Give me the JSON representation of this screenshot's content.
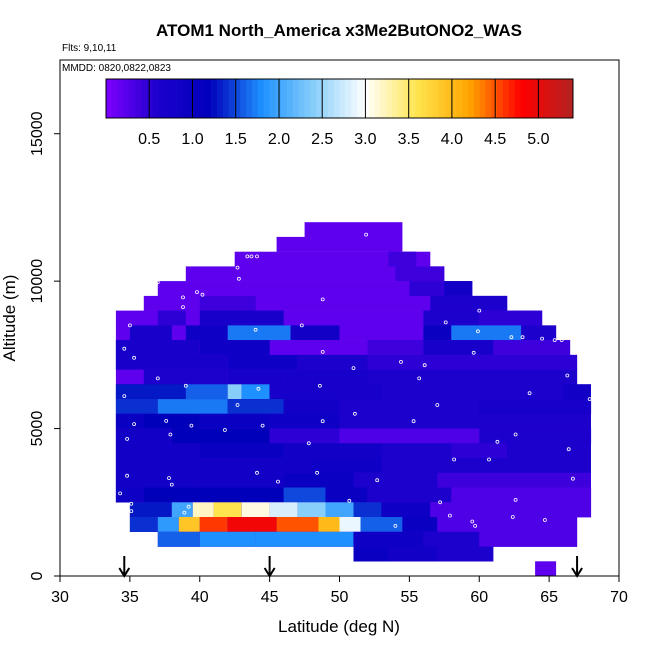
{
  "chart_data": {
    "type": "heatmap",
    "title": "ATOM1 North_America x3Me2ButONO2_WAS",
    "flights_label": "Flts: 9,10,11",
    "dates_label": "MMDD: 0820,0822,0823",
    "xlabel": "Latitude (deg N)",
    "ylabel": "Altitude (m)",
    "xlim": [
      30,
      70
    ],
    "ylim": [
      0,
      17500
    ],
    "x_ticks": [
      "30",
      "35",
      "40",
      "45",
      "50",
      "55",
      "60",
      "65",
      "70"
    ],
    "y_ticks": [
      "0",
      "5000",
      "10000",
      "15000"
    ],
    "colorbar": {
      "range": [
        0,
        5.4
      ],
      "ticks": [
        "0.5",
        "1.0",
        "1.5",
        "2.0",
        "2.5",
        "3.0",
        "3.5",
        "4.0",
        "4.5",
        "5.0"
      ],
      "colors": [
        "#7f00ff",
        "#1c00cc",
        "#0000bb",
        "#1e90ff",
        "#87cefa",
        "#ffffff",
        "#ffe44d",
        "#ffa500",
        "#ff0000",
        "#b22222"
      ]
    },
    "arrows_lat": [
      34.6,
      45.0,
      67.0
    ],
    "row_height_m": 500,
    "rows": [
      {
        "alt": 11750,
        "cells": [
          [
            47.5,
            54.5,
            0.2
          ]
        ]
      },
      {
        "alt": 11250,
        "cells": [
          [
            45.5,
            54.5,
            0.2
          ]
        ]
      },
      {
        "alt": 10750,
        "cells": [
          [
            42.5,
            56.5,
            0.2
          ],
          [
            53.5,
            55.5,
            0.4
          ]
        ]
      },
      {
        "alt": 10250,
        "cells": [
          [
            39.0,
            57.5,
            0.2
          ],
          [
            54.0,
            57.5,
            0.4
          ]
        ]
      },
      {
        "alt": 9750,
        "cells": [
          [
            37.0,
            57.5,
            0.2
          ],
          [
            55.0,
            59.5,
            0.5
          ],
          [
            57.5,
            59.5,
            0.8
          ]
        ]
      },
      {
        "alt": 9250,
        "cells": [
          [
            36.0,
            62.0,
            0.2
          ],
          [
            40.0,
            44.0,
            0.4
          ],
          [
            56.5,
            62.0,
            0.6
          ]
        ]
      },
      {
        "alt": 8750,
        "cells": [
          [
            34.0,
            64.5,
            0.2
          ],
          [
            37.0,
            39.0,
            0.5
          ],
          [
            40.0,
            46.0,
            0.7
          ],
          [
            56.0,
            60.0,
            0.6
          ],
          [
            60.0,
            64.5,
            0.5
          ]
        ]
      },
      {
        "alt": 8250,
        "cells": [
          [
            34.0,
            65.5,
            0.2
          ],
          [
            35.0,
            38.0,
            0.7
          ],
          [
            39.0,
            42.0,
            0.9
          ],
          [
            42.0,
            46.5,
            1.7
          ],
          [
            46.5,
            50.0,
            0.8
          ],
          [
            56.0,
            58.0,
            1.0
          ],
          [
            58.0,
            63.0,
            1.7
          ],
          [
            63.0,
            65.5,
            0.6
          ]
        ]
      },
      {
        "alt": 7750,
        "cells": [
          [
            34.0,
            66.5,
            0.2
          ],
          [
            34.0,
            40.0,
            0.7
          ],
          [
            40.0,
            45.0,
            0.9
          ],
          [
            52.0,
            56.0,
            0.4
          ],
          [
            56.0,
            61.0,
            0.7
          ],
          [
            61.0,
            66.5,
            0.4
          ]
        ]
      },
      {
        "alt": 7250,
        "cells": [
          [
            34.0,
            67.0,
            0.2
          ],
          [
            34.0,
            42.0,
            0.7
          ],
          [
            42.0,
            47.0,
            0.9
          ],
          [
            47.0,
            52.0,
            0.6
          ],
          [
            52.0,
            67.0,
            0.5
          ]
        ]
      },
      {
        "alt": 6750,
        "cells": [
          [
            34.0,
            67.0,
            0.2
          ],
          [
            36.0,
            42.0,
            0.6
          ],
          [
            42.0,
            46.0,
            0.7
          ],
          [
            46.0,
            52.0,
            0.7
          ],
          [
            52.0,
            67.0,
            0.6
          ]
        ]
      },
      {
        "alt": 6250,
        "cells": [
          [
            34.0,
            68.0,
            0.7
          ],
          [
            34.0,
            39.0,
            1.3
          ],
          [
            39.0,
            42.0,
            1.6
          ],
          [
            42.0,
            43.0,
            2.4
          ],
          [
            43.0,
            45.0,
            1.8
          ],
          [
            45.0,
            53.0,
            0.7
          ],
          [
            53.0,
            66.0,
            0.6
          ],
          [
            66.0,
            68.0,
            0.8
          ]
        ]
      },
      {
        "alt": 5750,
        "cells": [
          [
            34.0,
            68.0,
            0.8
          ],
          [
            34.0,
            37.0,
            1.4
          ],
          [
            37.0,
            42.0,
            1.7
          ],
          [
            42.0,
            46.0,
            1.4
          ],
          [
            46.0,
            50.0,
            0.8
          ],
          [
            50.0,
            60.0,
            0.6
          ],
          [
            60.0,
            68.0,
            0.7
          ]
        ]
      },
      {
        "alt": 5250,
        "cells": [
          [
            34.0,
            68.0,
            0.6
          ],
          [
            34.0,
            36.0,
            1.0
          ],
          [
            36.0,
            40.0,
            1.2
          ],
          [
            40.0,
            45.0,
            1.0
          ],
          [
            45.0,
            50.0,
            0.9
          ],
          [
            50.0,
            68.0,
            0.6
          ]
        ]
      },
      {
        "alt": 4750,
        "cells": [
          [
            34.0,
            68.0,
            0.3
          ],
          [
            34.0,
            38.0,
            0.8
          ],
          [
            38.0,
            45.0,
            1.2
          ],
          [
            45.0,
            50.0,
            0.5
          ],
          [
            50.0,
            60.0,
            0.3
          ],
          [
            60.0,
            68.0,
            0.6
          ]
        ]
      },
      {
        "alt": 4250,
        "cells": [
          [
            34.0,
            68.0,
            0.6
          ],
          [
            34.0,
            40.0,
            0.8
          ],
          [
            40.0,
            46.0,
            1.0
          ],
          [
            46.0,
            53.0,
            0.8
          ],
          [
            53.0,
            58.0,
            0.6
          ],
          [
            58.0,
            62.0,
            0.5
          ],
          [
            62.0,
            68.0,
            0.6
          ]
        ]
      },
      {
        "alt": 3750,
        "cells": [
          [
            34.0,
            68.0,
            0.6
          ],
          [
            34.0,
            48.0,
            0.8
          ],
          [
            48.0,
            53.0,
            0.9
          ],
          [
            53.0,
            68.0,
            0.6
          ]
        ]
      },
      {
        "alt": 3250,
        "cells": [
          [
            34.0,
            68.0,
            0.5
          ],
          [
            34.0,
            40.0,
            0.8
          ],
          [
            40.0,
            46.0,
            0.8
          ],
          [
            46.0,
            51.0,
            1.0
          ],
          [
            51.0,
            57.0,
            0.6
          ],
          [
            57.0,
            68.0,
            0.4
          ]
        ]
      },
      {
        "alt": 2750,
        "cells": [
          [
            34.0,
            68.0,
            0.4
          ],
          [
            34.0,
            36.0,
            0.9
          ],
          [
            36.0,
            46.0,
            1.2
          ],
          [
            46.0,
            49.0,
            1.5
          ],
          [
            49.0,
            52.0,
            1.0
          ],
          [
            52.0,
            58.0,
            0.6
          ],
          [
            58.0,
            68.0,
            0.3
          ]
        ]
      },
      {
        "alt": 2250,
        "cells": [
          [
            35.0,
            68.0,
            0.3
          ],
          [
            35.0,
            38.0,
            1.3
          ],
          [
            38.0,
            39.5,
            2.0
          ],
          [
            39.5,
            41.0,
            3.2
          ],
          [
            41.0,
            43.0,
            3.6
          ],
          [
            43.0,
            45.0,
            3.1
          ],
          [
            45.0,
            47.0,
            2.8
          ],
          [
            47.0,
            49.0,
            2.4
          ],
          [
            49.0,
            51.0,
            2.0
          ],
          [
            51.0,
            53.0,
            1.4
          ],
          [
            53.0,
            56.5,
            0.9
          ],
          [
            56.5,
            68.0,
            0.3
          ]
        ]
      },
      {
        "alt": 1750,
        "cells": [
          [
            35.0,
            67.0,
            0.3
          ],
          [
            35.0,
            37.0,
            1.4
          ],
          [
            37.0,
            38.5,
            1.9
          ],
          [
            38.5,
            40.0,
            3.9
          ],
          [
            40.0,
            42.0,
            4.6
          ],
          [
            42.0,
            45.5,
            4.9
          ],
          [
            45.5,
            48.5,
            4.5
          ],
          [
            48.5,
            50.0,
            4.0
          ],
          [
            50.0,
            51.5,
            2.9
          ],
          [
            51.5,
            54.5,
            1.6
          ],
          [
            54.5,
            57.0,
            1.0
          ],
          [
            57.0,
            67.0,
            0.3
          ]
        ]
      },
      {
        "alt": 1250,
        "cells": [
          [
            37.0,
            67.0,
            0.3
          ],
          [
            37.0,
            40.0,
            1.6
          ],
          [
            40.0,
            44.0,
            1.8
          ],
          [
            44.0,
            51.0,
            1.8
          ],
          [
            51.0,
            56.0,
            0.9
          ],
          [
            56.0,
            60.0,
            0.6
          ],
          [
            60.0,
            67.0,
            0.3
          ]
        ]
      },
      {
        "alt": 750,
        "cells": [
          [
            51.0,
            61.0,
            0.7
          ],
          [
            51.0,
            53.5,
            1.0
          ],
          [
            53.5,
            57.0,
            0.8
          ],
          [
            57.0,
            61.0,
            0.6
          ]
        ]
      },
      {
        "alt": 250,
        "cells": [
          [
            64.0,
            65.5,
            0.2
          ]
        ]
      }
    ],
    "points": [
      [
        47.3,
        11950
      ],
      [
        51.9,
        11580
      ],
      [
        43.4,
        10840
      ],
      [
        43.7,
        10840
      ],
      [
        44.1,
        10840
      ],
      [
        42.7,
        10460
      ],
      [
        42.8,
        10080
      ],
      [
        37.0,
        9960
      ],
      [
        39.8,
        9630
      ],
      [
        40.2,
        9540
      ],
      [
        38.8,
        9450
      ],
      [
        48.8,
        9380
      ],
      [
        34.5,
        9120
      ],
      [
        38.8,
        9120
      ],
      [
        60.0,
        9000
      ],
      [
        35.0,
        8500
      ],
      [
        57.6,
        8600
      ],
      [
        44.0,
        8350
      ],
      [
        47.3,
        8500
      ],
      [
        59.9,
        8300
      ],
      [
        62.3,
        8100
      ],
      [
        63.1,
        8100
      ],
      [
        64.5,
        8050
      ],
      [
        65.4,
        8000
      ],
      [
        65.9,
        8000
      ],
      [
        34.6,
        7710
      ],
      [
        48.8,
        7600
      ],
      [
        59.6,
        7570
      ],
      [
        35.3,
        7400
      ],
      [
        54.4,
        7260
      ],
      [
        56.1,
        7150
      ],
      [
        51.0,
        7050
      ],
      [
        66.3,
        6800
      ],
      [
        37.0,
        6700
      ],
      [
        55.7,
        6700
      ],
      [
        39.0,
        6450
      ],
      [
        48.6,
        6450
      ],
      [
        44.2,
        6350
      ],
      [
        63.6,
        6200
      ],
      [
        34.6,
        6100
      ],
      [
        67.9,
        6000
      ],
      [
        57.0,
        5800
      ],
      [
        42.7,
        5800
      ],
      [
        51.1,
        5500
      ],
      [
        37.6,
        5260
      ],
      [
        48.8,
        5250
      ],
      [
        55.3,
        5250
      ],
      [
        44.5,
        5100
      ],
      [
        35.3,
        5150
      ],
      [
        39.4,
        5100
      ],
      [
        41.8,
        4950
      ],
      [
        37.9,
        4800
      ],
      [
        34.8,
        4650
      ],
      [
        61.3,
        4550
      ],
      [
        47.8,
        4500
      ],
      [
        62.6,
        4800
      ],
      [
        58.2,
        3950
      ],
      [
        60.7,
        3950
      ],
      [
        66.4,
        4300
      ],
      [
        44.1,
        3500
      ],
      [
        48.4,
        3500
      ],
      [
        52.7,
        3250
      ],
      [
        34.8,
        3400
      ],
      [
        37.8,
        3320
      ],
      [
        45.6,
        3200
      ],
      [
        66.7,
        3300
      ],
      [
        38.0,
        3100
      ],
      [
        34.3,
        2800
      ],
      [
        50.7,
        2550
      ],
      [
        57.2,
        2500
      ],
      [
        62.6,
        2580
      ],
      [
        35.1,
        2450
      ],
      [
        39.2,
        2350
      ],
      [
        35.1,
        2200
      ],
      [
        38.9,
        2150
      ],
      [
        57.9,
        2050
      ],
      [
        59.5,
        1850
      ],
      [
        59.7,
        1700
      ],
      [
        62.4,
        2000
      ],
      [
        64.7,
        1900
      ],
      [
        54.0,
        1700
      ],
      [
        64.3,
        800
      ],
      [
        66.0,
        850
      ],
      [
        65.1,
        600
      ]
    ]
  }
}
